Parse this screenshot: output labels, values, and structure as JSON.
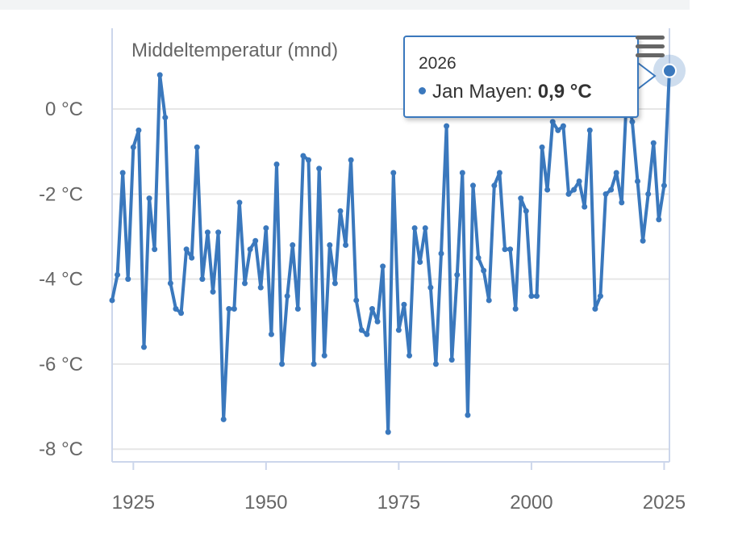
{
  "chart_data": {
    "type": "line",
    "title": "Middeltemperatur (mnd)",
    "xlabel": "",
    "ylabel": "",
    "xlim": [
      1921,
      2026
    ],
    "ylim": [
      -8.3,
      1.9
    ],
    "x_ticks": [
      1925,
      1950,
      1975,
      2000,
      2025
    ],
    "x_tick_labels": [
      "1925",
      "1950",
      "1975",
      "2000",
      "2025"
    ],
    "y_ticks": [
      0,
      -2,
      -4,
      -6,
      -8
    ],
    "y_tick_labels": [
      "0 °C",
      "-2 °C",
      "-4 °C",
      "-6 °C",
      "-8 °C"
    ],
    "grid": "horizontal",
    "legend": "none",
    "color": "#3a78bd",
    "series": [
      {
        "name": "Jan Mayen",
        "x": [
          1921,
          1922,
          1923,
          1924,
          1925,
          1926,
          1927,
          1928,
          1929,
          1930,
          1931,
          1932,
          1933,
          1934,
          1935,
          1936,
          1937,
          1938,
          1939,
          1940,
          1941,
          1942,
          1943,
          1944,
          1945,
          1946,
          1947,
          1948,
          1949,
          1950,
          1951,
          1952,
          1953,
          1954,
          1955,
          1956,
          1957,
          1958,
          1959,
          1960,
          1961,
          1962,
          1963,
          1964,
          1965,
          1966,
          1967,
          1968,
          1969,
          1970,
          1971,
          1972,
          1973,
          1974,
          1975,
          1976,
          1977,
          1978,
          1979,
          1980,
          1981,
          1982,
          1983,
          1984,
          1985,
          1986,
          1987,
          1988,
          1989,
          1990,
          1991,
          1992,
          1993,
          1994,
          1995,
          1996,
          1997,
          1998,
          1999,
          2000,
          2001,
          2002,
          2003,
          2004,
          2005,
          2006,
          2007,
          2008,
          2009,
          2010,
          2011,
          2012,
          2013,
          2014,
          2015,
          2016,
          2017,
          2018,
          2019,
          2020,
          2021,
          2022,
          2023,
          2024,
          2025,
          2026
        ],
        "values": [
          -4.5,
          -3.9,
          -1.5,
          -4.0,
          -0.9,
          -0.5,
          -5.6,
          -2.1,
          -3.3,
          0.8,
          -0.2,
          -4.1,
          -4.7,
          -4.8,
          -3.3,
          -3.5,
          -0.9,
          -4.0,
          -2.9,
          -4.3,
          -2.9,
          -7.3,
          -4.7,
          -4.7,
          -2.2,
          -4.1,
          -3.3,
          -3.1,
          -4.2,
          -2.8,
          -5.3,
          -1.3,
          -6.0,
          -4.4,
          -3.2,
          -4.7,
          -1.1,
          -1.2,
          -6.0,
          -1.4,
          -5.8,
          -3.2,
          -4.1,
          -2.4,
          -3.2,
          -1.2,
          -4.5,
          -5.2,
          -5.3,
          -4.7,
          -5.0,
          -3.7,
          -7.6,
          -1.5,
          -5.2,
          -4.6,
          -5.8,
          -2.8,
          -3.6,
          -2.8,
          -4.2,
          -6.0,
          -3.4,
          -0.4,
          -5.9,
          -3.9,
          -1.5,
          -7.2,
          -1.8,
          -3.5,
          -3.8,
          -4.5,
          -1.8,
          -1.5,
          -3.3,
          -3.3,
          -4.7,
          -2.1,
          -2.4,
          -4.4,
          -4.4,
          -0.9,
          -1.9,
          -0.3,
          -0.5,
          -0.4,
          -2.0,
          -1.9,
          -1.7,
          -2.3,
          -0.5,
          -4.7,
          -4.4,
          -2.0,
          -1.9,
          -1.5,
          -2.2,
          0.5,
          -0.3,
          -1.7,
          -3.1,
          -2.0,
          -0.8,
          -2.6,
          -1.8,
          0.9
        ]
      }
    ]
  },
  "tooltip": {
    "year": "2026",
    "series_name": "Jan Mayen:",
    "value": "0,9 °C"
  },
  "menu": {
    "icon": "hamburger-menu-icon"
  },
  "colors": {
    "line": "#3a78bd",
    "grid": "#e6e6e6",
    "axis": "#ccd6eb",
    "tooltip_border": "#3a78bd"
  }
}
